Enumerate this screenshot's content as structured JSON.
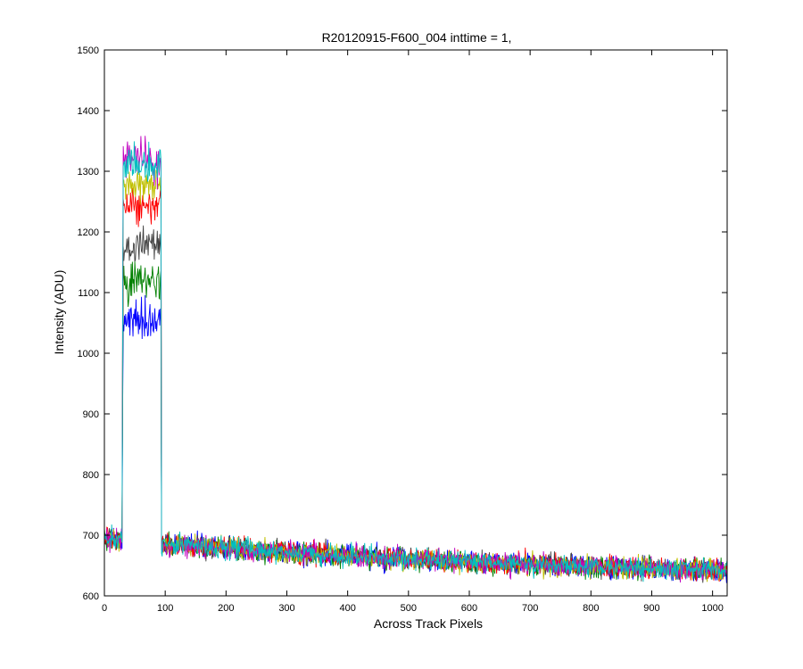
{
  "chart_data": {
    "type": "line",
    "title": "R20120915-F600_004 inttime = 1,",
    "xlabel": "Across Track Pixels",
    "ylabel": "Intensity (ADU)",
    "xlim": [
      0,
      1024
    ],
    "ylim": [
      600,
      1500
    ],
    "xticks": [
      0,
      100,
      200,
      300,
      400,
      500,
      600,
      700,
      800,
      900,
      1000
    ],
    "yticks": [
      600,
      700,
      800,
      900,
      1000,
      1100,
      1200,
      1300,
      1400,
      1500
    ],
    "grid": false,
    "legend": "none",
    "plateau_x_range": [
      30,
      93
    ],
    "baseline_trend": {
      "x": [
        0,
        100,
        300,
        500,
        700,
        900,
        1024
      ],
      "y": [
        695,
        685,
        672,
        660,
        652,
        645,
        642
      ]
    },
    "noise_amplitude": 12,
    "series": [
      {
        "color": "#0000ff",
        "plateau_level": 1050,
        "plateau_noise": 28
      },
      {
        "color": "#008000",
        "plateau_level": 1120,
        "plateau_noise": 26
      },
      {
        "color": "#404040",
        "plateau_level": 1180,
        "plateau_noise": 25
      },
      {
        "color": "#ff0000",
        "plateau_level": 1240,
        "plateau_noise": 24
      },
      {
        "color": "#c0c000",
        "plateau_level": 1280,
        "plateau_noise": 22
      },
      {
        "color": "#bf00bf",
        "plateau_level": 1320,
        "plateau_noise": 30
      },
      {
        "color": "#00bfbf",
        "plateau_level": 1315,
        "plateau_noise": 26
      }
    ]
  }
}
